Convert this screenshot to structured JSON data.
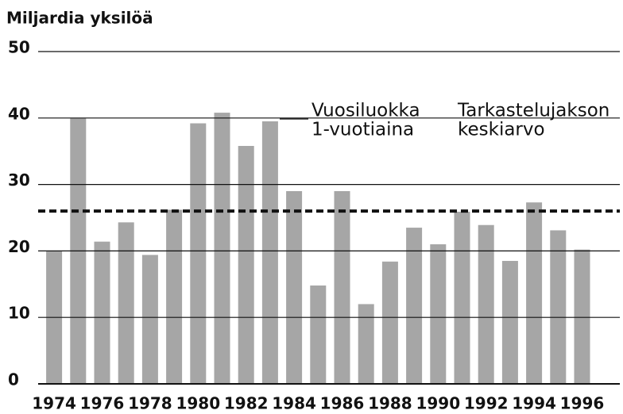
{
  "chart_data": {
    "type": "bar",
    "y_label": "Miljardia yksilöä",
    "categories": [
      "1974",
      null,
      "1976",
      null,
      "1978",
      null,
      "1980",
      null,
      "1982",
      null,
      "1984",
      null,
      "1986",
      null,
      "1988",
      null,
      "1990",
      null,
      "1992",
      null,
      "1994",
      null,
      "1996"
    ],
    "values": [
      20,
      40,
      21.4,
      24.3,
      19.4,
      26.2,
      39.2,
      40.8,
      35.8,
      39.5,
      29,
      14.8,
      29,
      12,
      18.4,
      23.5,
      21,
      25.9,
      23.9,
      18.5,
      27.3,
      23.1,
      20.2
    ],
    "color": "#a6a6a6",
    "mean_line": 26,
    "annotations": [
      {
        "lines": [
          "Vuosiluokka",
          "1-vuotiaina"
        ]
      },
      {
        "lines": [
          "Tarkastelujakson",
          "keskiarvo"
        ]
      }
    ],
    "ylim": [
      0,
      50
    ],
    "yticks": [
      0,
      10,
      20,
      30,
      40,
      50
    ],
    "grid": true
  }
}
